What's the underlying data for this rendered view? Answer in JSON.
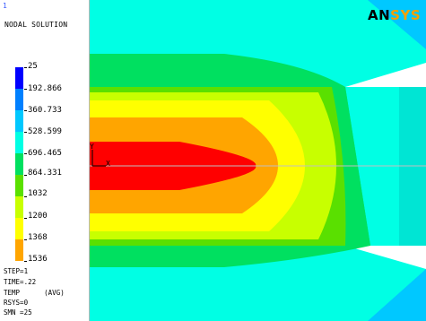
{
  "window_number": "1",
  "title": "NODAL SOLUTION",
  "legend": {
    "values": [
      "25",
      "192.866",
      "360.733",
      "528.599",
      "696.465",
      "864.331",
      "1032",
      "1200",
      "1368",
      "1536"
    ],
    "colors": [
      "#0000ff",
      "#0080ff",
      "#00c8ff",
      "#00ffe4",
      "#00e060",
      "#5ae000",
      "#c8ff00",
      "#ffff00",
      "#ffa500",
      "#ff0000"
    ]
  },
  "status": {
    "step": "STEP=1",
    "time": "TIME=.22",
    "temp": "TEMP      (AVG)",
    "rsys": "RSYS=0",
    "smn": "SMN =25"
  },
  "logo": {
    "part1": "AN",
    "part2": "SYS"
  },
  "axes": {
    "y": "Y",
    "x": "X"
  }
}
